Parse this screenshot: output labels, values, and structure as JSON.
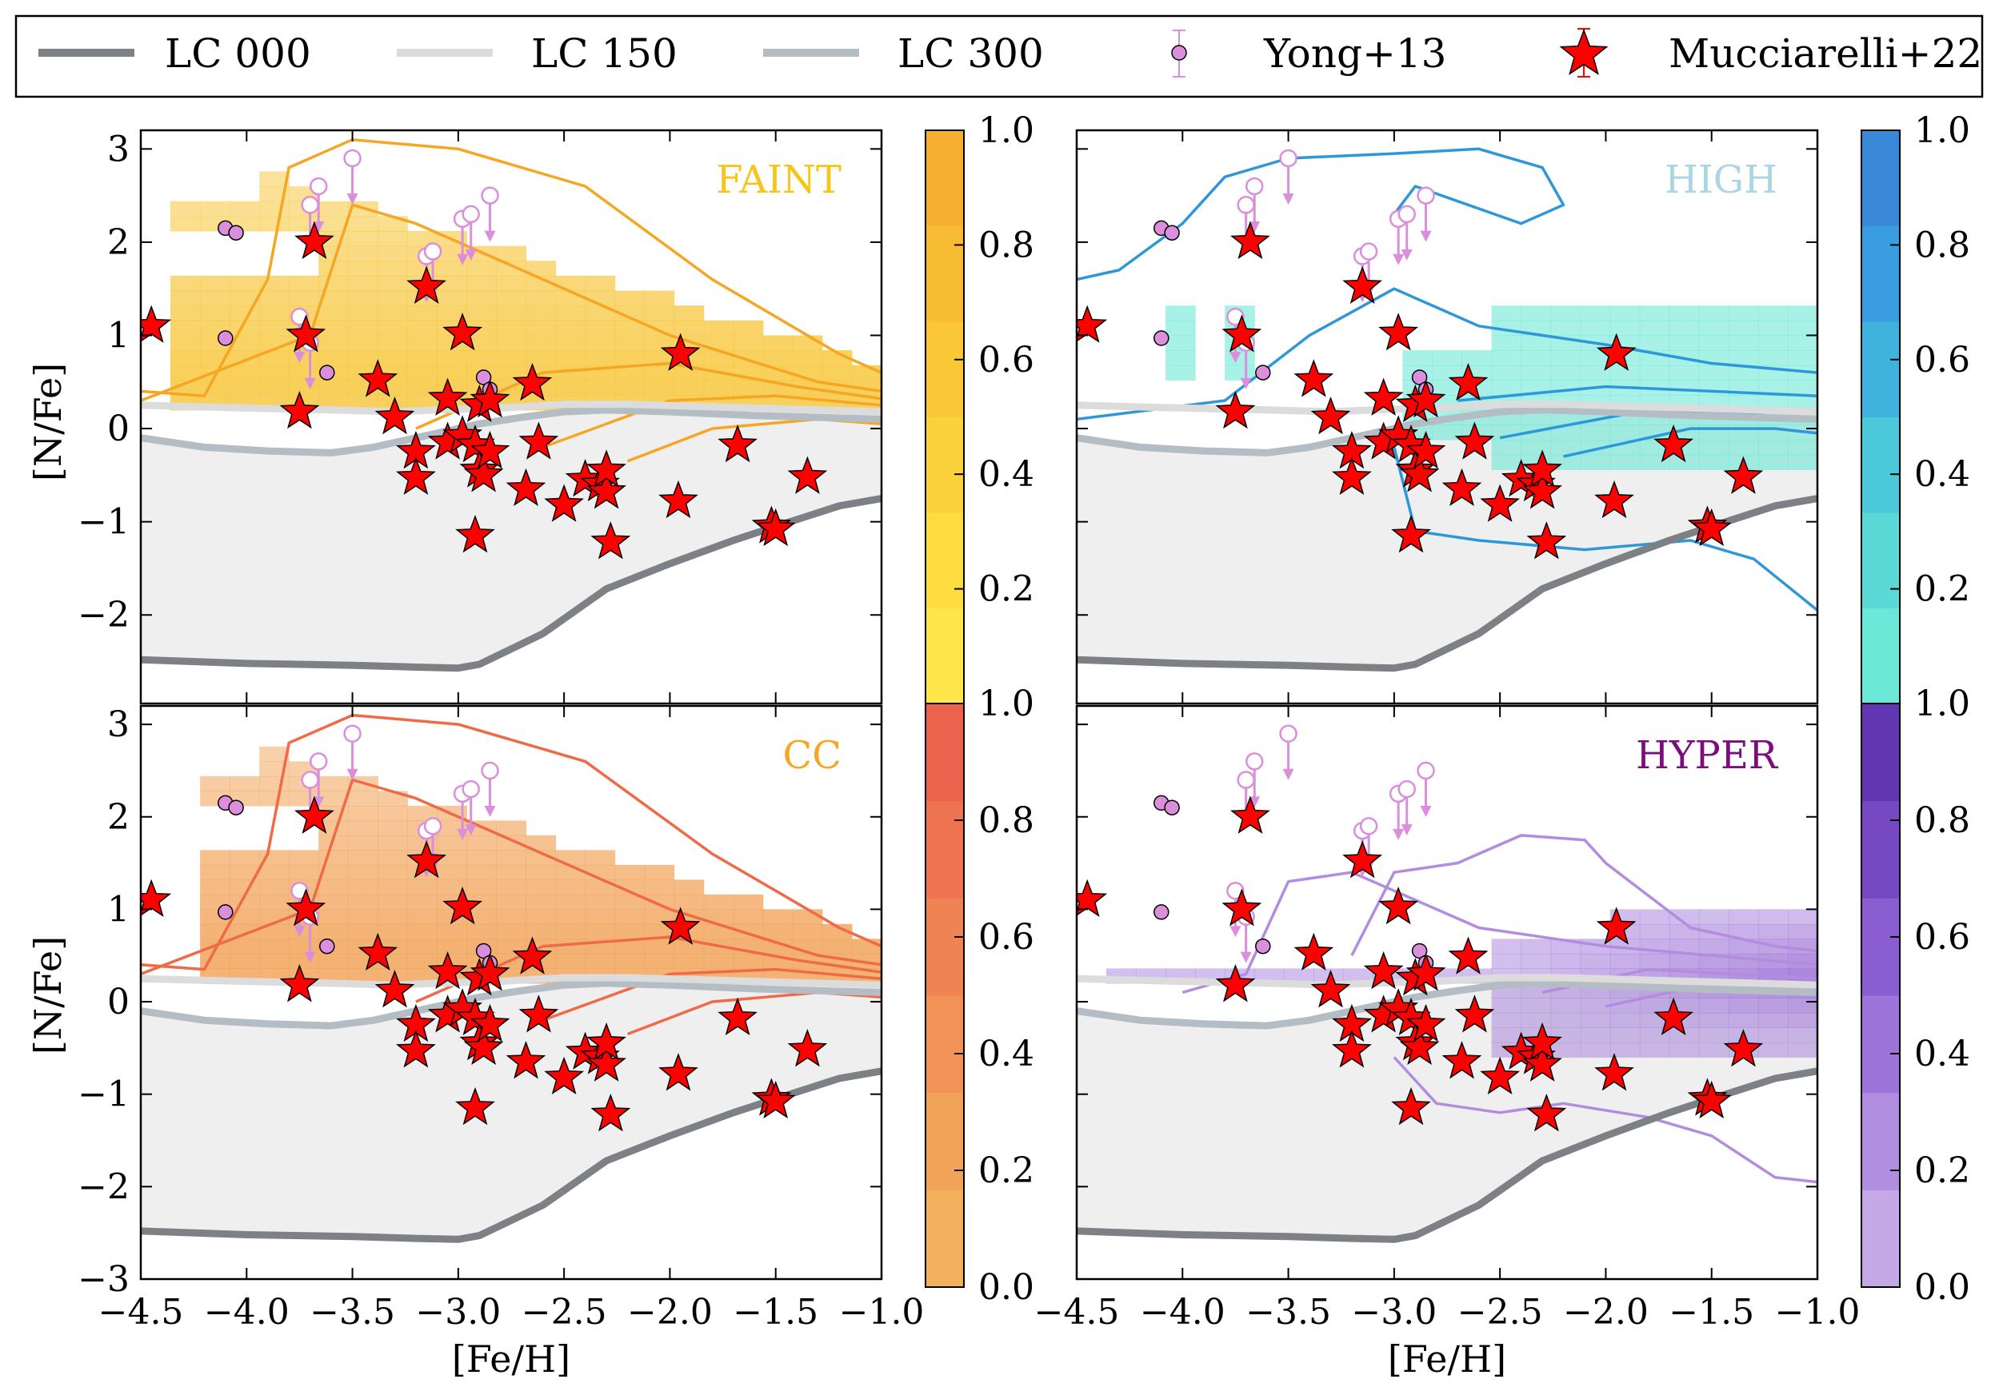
{
  "legend": {
    "lc000": "LC 000",
    "lc150": "LC 150",
    "lc300": "LC 300",
    "yong": "Yong+13",
    "mucc": "Mucciarelli+22"
  },
  "colors": {
    "lc000": "#7d8084",
    "lc150": "#dcdcdc",
    "lc300": "#b4bcc4",
    "yong": "#da8edb",
    "star": "#ff0000",
    "shade": "#efefef",
    "faint": "#f7c63a",
    "faint_contour": "#f5a623",
    "high": "#5fe6d4",
    "high_contour": "#2e97d8",
    "cc": "#f1a257",
    "cc_contour": "#ef6a47",
    "hyper": "#9c72d7",
    "hyper_contour": "#b38ce0"
  },
  "chart_data": {
    "type": "scatter",
    "xlabel": "[Fe/H]",
    "ylabel": "[N/Fe]",
    "xlim": [
      -4.5,
      -1.0
    ],
    "ylim": [
      -3.0,
      3.2
    ],
    "x_ticks": [
      "−4.5",
      "−4.0",
      "−3.5",
      "−3.0",
      "−2.5",
      "−2.0",
      "−1.5",
      "−1.0"
    ],
    "y_ticks": [
      "−3",
      "−2",
      "−1",
      "0",
      "1",
      "2",
      "3"
    ],
    "colorbar_ticks": [
      "0.0",
      "0.2",
      "0.4",
      "0.6",
      "0.8",
      "1.0"
    ],
    "panels": [
      {
        "label": "FAINT"
      },
      {
        "label": "HIGH"
      },
      {
        "label": "CC"
      },
      {
        "label": "HYPER"
      }
    ],
    "lc000": [
      [
        -4.5,
        -2.48
      ],
      [
        -4.0,
        -2.52
      ],
      [
        -3.5,
        -2.54
      ],
      [
        -3.2,
        -2.56
      ],
      [
        -3.0,
        -2.57
      ],
      [
        -2.9,
        -2.53
      ],
      [
        -2.8,
        -2.42
      ],
      [
        -2.6,
        -2.2
      ],
      [
        -2.3,
        -1.72
      ],
      [
        -2.0,
        -1.45
      ],
      [
        -1.7,
        -1.2
      ],
      [
        -1.5,
        -1.05
      ],
      [
        -1.2,
        -0.83
      ],
      [
        -1.0,
        -0.75
      ]
    ],
    "lc150": [
      [
        -4.5,
        0.25
      ],
      [
        -4.0,
        0.22
      ],
      [
        -3.6,
        0.2
      ],
      [
        -3.3,
        0.18
      ],
      [
        -3.1,
        0.2
      ],
      [
        -2.8,
        0.22
      ],
      [
        -2.5,
        0.26
      ],
      [
        -2.2,
        0.26
      ],
      [
        -1.9,
        0.24
      ],
      [
        -1.6,
        0.22
      ],
      [
        -1.3,
        0.2
      ],
      [
        -1.0,
        0.18
      ]
    ],
    "lc300": [
      [
        -4.5,
        -0.1
      ],
      [
        -4.2,
        -0.2
      ],
      [
        -3.9,
        -0.24
      ],
      [
        -3.6,
        -0.26
      ],
      [
        -3.4,
        -0.2
      ],
      [
        -3.1,
        -0.05
      ],
      [
        -2.9,
        0.05
      ],
      [
        -2.7,
        0.12
      ],
      [
        -2.5,
        0.18
      ],
      [
        -2.3,
        0.2
      ],
      [
        -2.0,
        0.18
      ],
      [
        -1.6,
        0.14
      ],
      [
        -1.3,
        0.12
      ],
      [
        -1.0,
        0.1
      ]
    ],
    "yong": [
      [
        -4.1,
        2.15
      ],
      [
        -4.05,
        2.1
      ],
      [
        -4.1,
        0.97
      ],
      [
        -3.62,
        0.6
      ],
      [
        -2.88,
        0.55
      ],
      [
        -2.85,
        0.42
      ]
    ],
    "yong_upper": [
      [
        -3.75,
        1.2
      ],
      [
        -3.7,
        2.4
      ],
      [
        -3.66,
        2.6
      ],
      [
        -3.5,
        2.9
      ],
      [
        -3.7,
        0.92
      ],
      [
        -3.15,
        1.85
      ],
      [
        -3.12,
        1.9
      ],
      [
        -2.98,
        2.25
      ],
      [
        -2.94,
        2.3
      ],
      [
        -2.85,
        2.5
      ]
    ],
    "mucc": [
      [
        -4.45,
        1.1
      ],
      [
        -3.68,
        2.0
      ],
      [
        -3.72,
        1.0
      ],
      [
        -3.75,
        0.18
      ],
      [
        -3.38,
        0.52
      ],
      [
        -3.3,
        0.12
      ],
      [
        -3.2,
        -0.25
      ],
      [
        -3.2,
        -0.53
      ],
      [
        -3.15,
        1.52
      ],
      [
        -3.05,
        -0.15
      ],
      [
        -3.05,
        0.32
      ],
      [
        -2.98,
        1.02
      ],
      [
        -2.98,
        -0.08
      ],
      [
        -2.92,
        -0.18
      ],
      [
        -2.9,
        0.25
      ],
      [
        -2.9,
        -0.45
      ],
      [
        -2.88,
        -0.5
      ],
      [
        -2.85,
        0.3
      ],
      [
        -2.85,
        -0.25
      ],
      [
        -2.65,
        0.48
      ],
      [
        -2.62,
        -0.15
      ],
      [
        -2.68,
        -0.65
      ],
      [
        -2.5,
        -0.82
      ],
      [
        -2.4,
        -0.55
      ],
      [
        -2.33,
        -0.6
      ],
      [
        -2.3,
        -0.68
      ],
      [
        -2.3,
        -0.45
      ],
      [
        -2.28,
        -1.22
      ],
      [
        -1.95,
        0.8
      ],
      [
        -1.96,
        -0.78
      ],
      [
        -1.68,
        -0.18
      ],
      [
        -1.52,
        -1.05
      ],
      [
        -1.5,
        -1.08
      ],
      [
        -1.35,
        -0.52
      ],
      [
        -2.92,
        -1.15
      ]
    ]
  }
}
